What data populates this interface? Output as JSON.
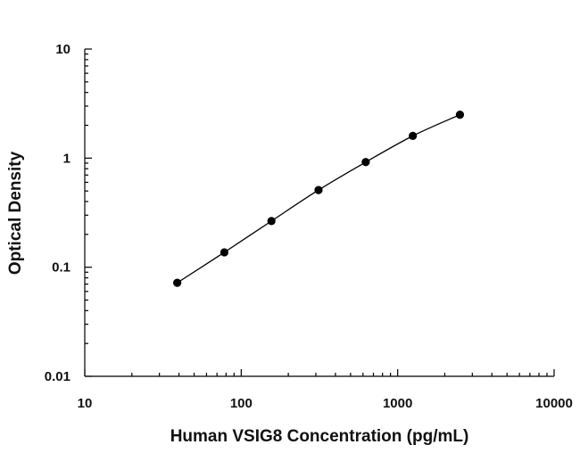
{
  "chart_data": {
    "type": "scatter",
    "title": "",
    "xlabel": "Human VSIG8 Concentration (pg/mL)",
    "ylabel": "Optical Density",
    "xscale": "log",
    "yscale": "log",
    "xlim": [
      10,
      10000
    ],
    "ylim": [
      0.01,
      10
    ],
    "x_ticks": [
      "10",
      "100",
      "1000",
      "10000"
    ],
    "y_ticks": [
      "0.01",
      "0.1",
      "1",
      "10"
    ],
    "grid": false,
    "legend": "none",
    "fitted_curve": true,
    "series": [
      {
        "x": [
          39,
          78,
          156,
          312,
          625,
          1250,
          2500
        ],
        "y": [
          0.072,
          0.137,
          0.265,
          0.51,
          0.92,
          1.6,
          2.5
        ],
        "color": "#000000"
      }
    ]
  }
}
